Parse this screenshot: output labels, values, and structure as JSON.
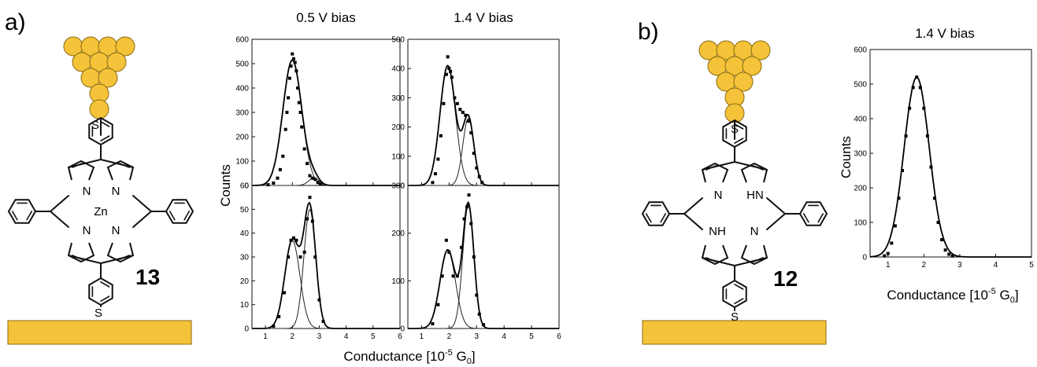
{
  "figure": {
    "panel_a_label": "a)",
    "panel_b_label": "b)",
    "compound_a": "13",
    "compound_b": "12",
    "atoms": {
      "sulfur": "S",
      "nitrogen": "N",
      "zinc": "Zn",
      "hn": "HN",
      "nh": "NH"
    },
    "colors": {
      "gold": "#F5C339",
      "gold_outline": "#8a6a10",
      "bond": "#111111"
    },
    "titles": {
      "a_left": "0.5 V bias",
      "a_right": "1.4 V bias",
      "b": "1.4 V bias"
    },
    "ylabel": "Counts",
    "xlabel_a": "Conductance [10",
    "xlabel_b": "Conductance [10",
    "xlabel_sup": "-5",
    "xlabel_g": " G",
    "xlabel_sub": "0",
    "xlabel_close": "]"
  },
  "chart_data": [
    {
      "type": "line",
      "panel": "a",
      "title": "0.5 V bias",
      "xlabel": "Conductance [10-5 G0]",
      "ylabel": "Counts",
      "xlim": [
        0.5,
        6
      ],
      "ylim": [
        0,
        600
      ],
      "xticks": [
        1,
        2,
        3,
        4,
        5,
        6
      ],
      "yticks": [
        0,
        100,
        200,
        300,
        400,
        500,
        600
      ],
      "peaks": [
        {
          "center": 2.0,
          "height": 515,
          "width": 0.35
        },
        {
          "center": 2.8,
          "height": 30,
          "width": 0.2
        }
      ],
      "scatter": [
        [
          1.1,
          3
        ],
        [
          1.3,
          10
        ],
        [
          1.45,
          30
        ],
        [
          1.55,
          65
        ],
        [
          1.65,
          120
        ],
        [
          1.75,
          230
        ],
        [
          1.8,
          300
        ],
        [
          1.85,
          360
        ],
        [
          1.9,
          440
        ],
        [
          1.95,
          490
        ],
        [
          2.0,
          540
        ],
        [
          2.05,
          520
        ],
        [
          2.1,
          505
        ],
        [
          2.15,
          470
        ],
        [
          2.2,
          400
        ],
        [
          2.25,
          340
        ],
        [
          2.3,
          300
        ],
        [
          2.35,
          240
        ],
        [
          2.45,
          150
        ],
        [
          2.55,
          90
        ],
        [
          2.65,
          40
        ],
        [
          2.75,
          30
        ],
        [
          2.85,
          25
        ],
        [
          2.95,
          12
        ],
        [
          3.05,
          5
        ]
      ]
    },
    {
      "type": "line",
      "panel": "a",
      "title": "1.4 V bias",
      "xlabel": "Conductance [10-5 G0]",
      "ylabel": "Counts",
      "xlim": [
        0.5,
        6
      ],
      "ylim": [
        0,
        500
      ],
      "xticks": [
        1,
        2,
        3,
        4,
        5,
        6
      ],
      "yticks": [
        0,
        100,
        200,
        300,
        400,
        500
      ],
      "peaks": [
        {
          "center": 1.95,
          "height": 410,
          "width": 0.28
        },
        {
          "center": 2.7,
          "height": 230,
          "width": 0.2
        }
      ],
      "scatter": [
        [
          1.4,
          10
        ],
        [
          1.5,
          40
        ],
        [
          1.6,
          90
        ],
        [
          1.7,
          170
        ],
        [
          1.8,
          280
        ],
        [
          1.9,
          380
        ],
        [
          1.95,
          440
        ],
        [
          2.0,
          400
        ],
        [
          2.05,
          390
        ],
        [
          2.1,
          370
        ],
        [
          2.2,
          300
        ],
        [
          2.3,
          280
        ],
        [
          2.4,
          260
        ],
        [
          2.5,
          250
        ],
        [
          2.6,
          240
        ],
        [
          2.7,
          220
        ],
        [
          2.8,
          180
        ],
        [
          2.9,
          110
        ],
        [
          3.0,
          60
        ],
        [
          3.1,
          30
        ],
        [
          3.2,
          10
        ]
      ]
    },
    {
      "type": "line",
      "panel": "a",
      "xlabel": "Conductance [10-5 G0]",
      "ylabel": "Counts",
      "xlim": [
        0.5,
        6
      ],
      "ylim": [
        0,
        60
      ],
      "xticks": [
        1,
        2,
        3,
        4,
        5,
        6
      ],
      "yticks": [
        0,
        10,
        20,
        30,
        40,
        50,
        60
      ],
      "peaks": [
        {
          "center": 2.0,
          "height": 37,
          "width": 0.28
        },
        {
          "center": 2.65,
          "height": 50,
          "width": 0.22
        }
      ],
      "scatter": [
        [
          1.3,
          1
        ],
        [
          1.5,
          5
        ],
        [
          1.7,
          15
        ],
        [
          1.85,
          30
        ],
        [
          1.95,
          37
        ],
        [
          2.05,
          38
        ],
        [
          2.15,
          37
        ],
        [
          2.3,
          30
        ],
        [
          2.45,
          32
        ],
        [
          2.55,
          46
        ],
        [
          2.65,
          55
        ],
        [
          2.75,
          45
        ],
        [
          2.85,
          30
        ],
        [
          3.0,
          12
        ],
        [
          3.15,
          3
        ]
      ]
    },
    {
      "type": "line",
      "panel": "a",
      "xlabel": "Conductance [10-5 G0]",
      "ylabel": "Counts",
      "xlim": [
        0.5,
        6
      ],
      "ylim": [
        0,
        300
      ],
      "xticks": [
        1,
        2,
        3,
        4,
        5,
        6
      ],
      "yticks": [
        0,
        100,
        200,
        300
      ],
      "peaks": [
        {
          "center": 1.95,
          "height": 165,
          "width": 0.28
        },
        {
          "center": 2.7,
          "height": 260,
          "width": 0.2
        }
      ],
      "scatter": [
        [
          1.4,
          10
        ],
        [
          1.6,
          50
        ],
        [
          1.75,
          110
        ],
        [
          1.9,
          185
        ],
        [
          2.0,
          160
        ],
        [
          2.15,
          110
        ],
        [
          2.3,
          110
        ],
        [
          2.45,
          170
        ],
        [
          2.55,
          230
        ],
        [
          2.65,
          255
        ],
        [
          2.72,
          280
        ],
        [
          2.8,
          220
        ],
        [
          2.9,
          150
        ],
        [
          3.0,
          70
        ],
        [
          3.1,
          30
        ],
        [
          3.25,
          8
        ]
      ]
    },
    {
      "type": "line",
      "panel": "b",
      "title": "1.4 V bias",
      "xlabel": "Conductance [10-5 G0]",
      "ylabel": "Counts",
      "xlim": [
        0.5,
        5
      ],
      "ylim": [
        0,
        600
      ],
      "xticks": [
        1,
        2,
        3,
        4,
        5
      ],
      "yticks": [
        0,
        100,
        200,
        300,
        400,
        500,
        600
      ],
      "peaks": [
        {
          "center": 1.8,
          "height": 520,
          "width": 0.35
        }
      ],
      "scatter": [
        [
          0.9,
          3
        ],
        [
          1.0,
          10
        ],
        [
          1.1,
          40
        ],
        [
          1.2,
          90
        ],
        [
          1.3,
          170
        ],
        [
          1.4,
          250
        ],
        [
          1.5,
          350
        ],
        [
          1.6,
          430
        ],
        [
          1.7,
          490
        ],
        [
          1.8,
          520
        ],
        [
          1.9,
          490
        ],
        [
          2.0,
          430
        ],
        [
          2.1,
          350
        ],
        [
          2.2,
          260
        ],
        [
          2.3,
          170
        ],
        [
          2.4,
          100
        ],
        [
          2.5,
          50
        ],
        [
          2.6,
          20
        ],
        [
          2.7,
          8
        ],
        [
          2.8,
          3
        ]
      ]
    }
  ]
}
